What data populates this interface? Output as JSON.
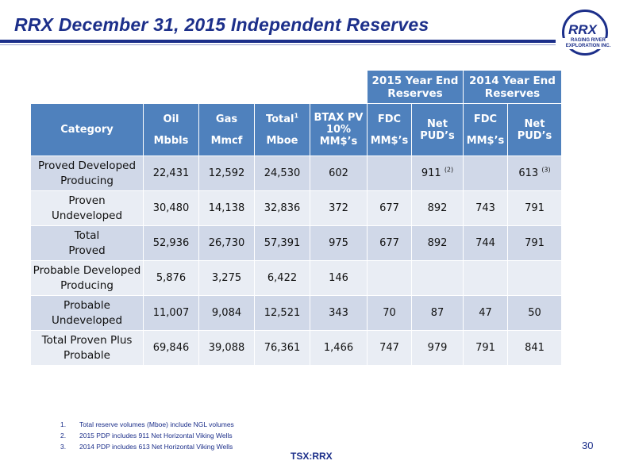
{
  "title": "RRX December 31, 2015 Independent Reserves",
  "logo": {
    "name": "RRX",
    "sub_line1": "RAGING RIVER",
    "sub_line2": "EXPLORATION INC."
  },
  "table": {
    "group_headers": [
      "2015 Year End Reserves",
      "2014 Year End Reserves"
    ],
    "columns": [
      {
        "line1": "Category",
        "line2": ""
      },
      {
        "line1": "Oil",
        "line2": "Mbbls"
      },
      {
        "line1": "Gas",
        "line2": "Mmcf"
      },
      {
        "line1": "Total",
        "sup": "1",
        "line2": "Mboe"
      },
      {
        "line1": "BTAX PV",
        "line2": "10%",
        "line3": "MM$’s"
      },
      {
        "line1": "FDC",
        "line2": "MM$’s"
      },
      {
        "line1": "Net",
        "line2": "PUD’s"
      },
      {
        "line1": "FDC",
        "line2": "MM$’s"
      },
      {
        "line1": "Net",
        "line2": "PUD’s"
      }
    ],
    "rows": [
      {
        "category_l1": "Proved Developed",
        "category_l2": "Producing",
        "oil": "22,431",
        "gas": "12,592",
        "total": "24,530",
        "btax": "602",
        "fdc15": "",
        "pud15": "911",
        "pud15_note": "(2)",
        "fdc14": "",
        "pud14": "613",
        "pud14_note": "(3)"
      },
      {
        "category_l1": "Proven",
        "category_l2": "Undeveloped",
        "oil": "30,480",
        "gas": "14,138",
        "total": "32,836",
        "btax": "372",
        "fdc15": "677",
        "pud15": "892",
        "pud15_note": "",
        "fdc14": "743",
        "pud14": "791",
        "pud14_note": ""
      },
      {
        "category_l1": "Total",
        "category_l2": "Proved",
        "oil": "52,936",
        "gas": "26,730",
        "total": "57,391",
        "btax": "975",
        "fdc15": "677",
        "pud15": "892",
        "pud15_note": "",
        "fdc14": "744",
        "pud14": "791",
        "pud14_note": ""
      },
      {
        "category_l1": "Probable Developed",
        "category_l2": "Producing",
        "oil": "5,876",
        "gas": "3,275",
        "total": "6,422",
        "btax": "146",
        "fdc15": "",
        "pud15": "",
        "pud15_note": "",
        "fdc14": "",
        "pud14": "",
        "pud14_note": ""
      },
      {
        "category_l1": "Probable",
        "category_l2": "Undeveloped",
        "oil": "11,007",
        "gas": "9,084",
        "total": "12,521",
        "btax": "343",
        "fdc15": "70",
        "pud15": "87",
        "pud15_note": "",
        "fdc14": "47",
        "pud14": "50",
        "pud14_note": ""
      },
      {
        "category_l1": "Total Proven Plus",
        "category_l2": "Probable",
        "oil": "69,846",
        "gas": "39,088",
        "total": "76,361",
        "btax": "1,466",
        "fdc15": "747",
        "pud15": "979",
        "pud15_note": "",
        "fdc14": "791",
        "pud14": "841",
        "pud14_note": ""
      }
    ]
  },
  "footnotes": [
    {
      "num": "1.",
      "text": "Total reserve volumes (Mboe) include NGL volumes"
    },
    {
      "num": "2.",
      "text": "2015 PDP includes 911 Net Horizontal Viking Wells"
    },
    {
      "num": "3.",
      "text": "2014 PDP includes 613 Net Horizontal Viking Wells"
    }
  ],
  "page_number": "30",
  "ticker": "TSX:RRX",
  "colors": {
    "brand": "#1c2f8a",
    "header": "#4f81bd",
    "row_dark": "#d0d8e8",
    "row_light": "#e9edf4"
  }
}
